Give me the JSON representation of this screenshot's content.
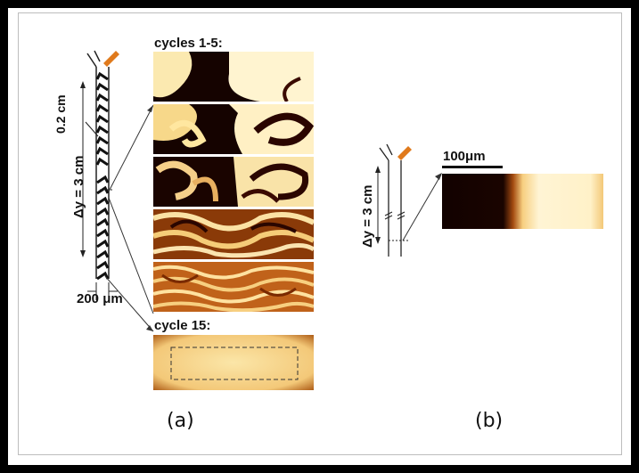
{
  "panel_a": {
    "letter": "(a)",
    "header_cycles_1_5": "cycles 1-5:",
    "header_cycle_15": "cycle 15:",
    "label_width": "0.2 cm",
    "label_length": "Δy = 3 cm",
    "label_channel": "200 μm"
  },
  "panel_b": {
    "letter": "(b)",
    "label_length": "Δy = 3 cm",
    "scale_bar": "100μm"
  },
  "colors": {
    "dark": "#1a0500",
    "bright": "#fff6c8",
    "orange": "#e07a1c",
    "mid": "#d98a2a"
  }
}
